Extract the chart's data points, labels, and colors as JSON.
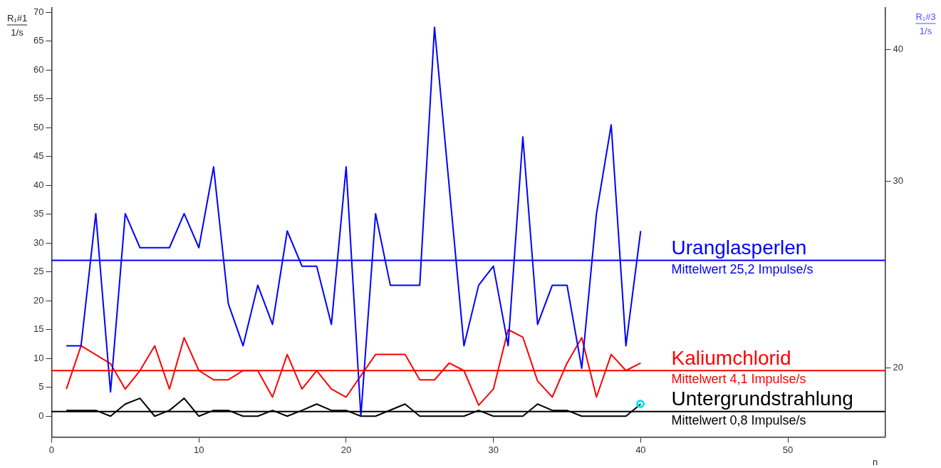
{
  "chart_data": {
    "type": "line",
    "xlabel": "n",
    "ylabel": "R₁#1\n1/s",
    "y2label": "R₁#3\n1/s",
    "xlim": [
      0,
      56.6
    ],
    "xticks": [
      0,
      10,
      20,
      30,
      40,
      50
    ],
    "ylim": [
      -3.6,
      70.8
    ],
    "yticks": [
      0,
      5,
      10,
      15,
      20,
      25,
      30,
      35,
      40,
      45,
      50,
      55,
      60,
      65,
      70
    ],
    "y2lim": [
      17.2,
      43.8
    ],
    "y2ticks": [
      20,
      30,
      40
    ],
    "log": "y2",
    "grid": false,
    "legend": false,
    "series": [
      {
        "name": "Uranglasperlen",
        "color": "#0000ff",
        "x": [
          1,
          2,
          3,
          4,
          5,
          6,
          7,
          8,
          9,
          10,
          11,
          12,
          13,
          14,
          15,
          16,
          17,
          18,
          19,
          20,
          21,
          22,
          23,
          24,
          25,
          26,
          28,
          29,
          30,
          31,
          32,
          33,
          34,
          35,
          36,
          37,
          38,
          39,
          40
        ],
        "values": [
          12.2,
          12.2,
          35.1,
          4.2,
          35.1,
          29.2,
          29.2,
          29.2,
          35.1,
          29.2,
          43.2,
          19.5,
          12.2,
          22.7,
          15.9,
          32.1,
          26.0,
          26.0,
          15.9,
          43.2,
          0,
          35.1,
          22.7,
          22.7,
          22.7,
          67.4,
          12.2,
          22.7,
          26.0,
          12.2,
          48.4,
          15.9,
          22.7,
          22.7,
          8.3,
          35.1,
          50.5,
          12.2,
          32.1
        ]
      },
      {
        "name": "Kaliumchlorid",
        "color": "#ff0000",
        "x": [
          1,
          2,
          4,
          5,
          6,
          7,
          8,
          9,
          10,
          11,
          12,
          13,
          14,
          15,
          16,
          17,
          18,
          19,
          20,
          22,
          23,
          24,
          25,
          26,
          27,
          28,
          29,
          30,
          31,
          32,
          33,
          34,
          35,
          36,
          37,
          38,
          39,
          40
        ],
        "values": [
          4.7,
          12.2,
          9.1,
          4.7,
          7.9,
          12.2,
          4.7,
          13.6,
          7.9,
          6.3,
          6.3,
          7.9,
          7.9,
          3.3,
          10.7,
          4.7,
          7.9,
          4.7,
          3.3,
          10.7,
          10.7,
          10.7,
          6.3,
          6.3,
          9.2,
          7.9,
          1.9,
          4.7,
          15.0,
          13.7,
          6.1,
          3.3,
          9.2,
          13.6,
          3.3,
          10.7,
          7.9,
          9.2
        ]
      },
      {
        "name": "Untergrundstrahlung",
        "color": "#000000",
        "x": [
          1,
          2,
          3,
          4,
          5,
          6,
          7,
          8,
          9,
          10,
          11,
          12,
          13,
          14,
          15,
          16,
          17,
          18,
          19,
          20,
          21,
          22,
          24,
          25,
          26,
          27,
          28,
          29,
          30,
          31,
          32,
          33,
          34,
          35,
          36,
          37,
          38,
          39,
          40
        ],
        "values": [
          1.0,
          1.0,
          1.0,
          0,
          2.1,
          3.1,
          0,
          1.0,
          3.1,
          0,
          1.0,
          1.0,
          0,
          0,
          1.0,
          0,
          1.0,
          2.1,
          1.0,
          1.0,
          0,
          0,
          2.1,
          0,
          0,
          0,
          0,
          1.0,
          0,
          0,
          0,
          2.1,
          1.0,
          1.0,
          0,
          0,
          0,
          0,
          2.1
        ]
      }
    ],
    "ref_lines": [
      {
        "axis": "y",
        "value": 27.0,
        "label": "Mittelwert 25,2 Impulse/s",
        "color": "#0000ff"
      },
      {
        "axis": "y",
        "value": 7.9,
        "label": "Mittelwert 4,1 Impulse/s",
        "color": "#ff0000"
      },
      {
        "axis": "y",
        "value": 0.8,
        "label": "Mittelwert 0,8 Impulse/s",
        "color": "#000000"
      }
    ]
  }
}
